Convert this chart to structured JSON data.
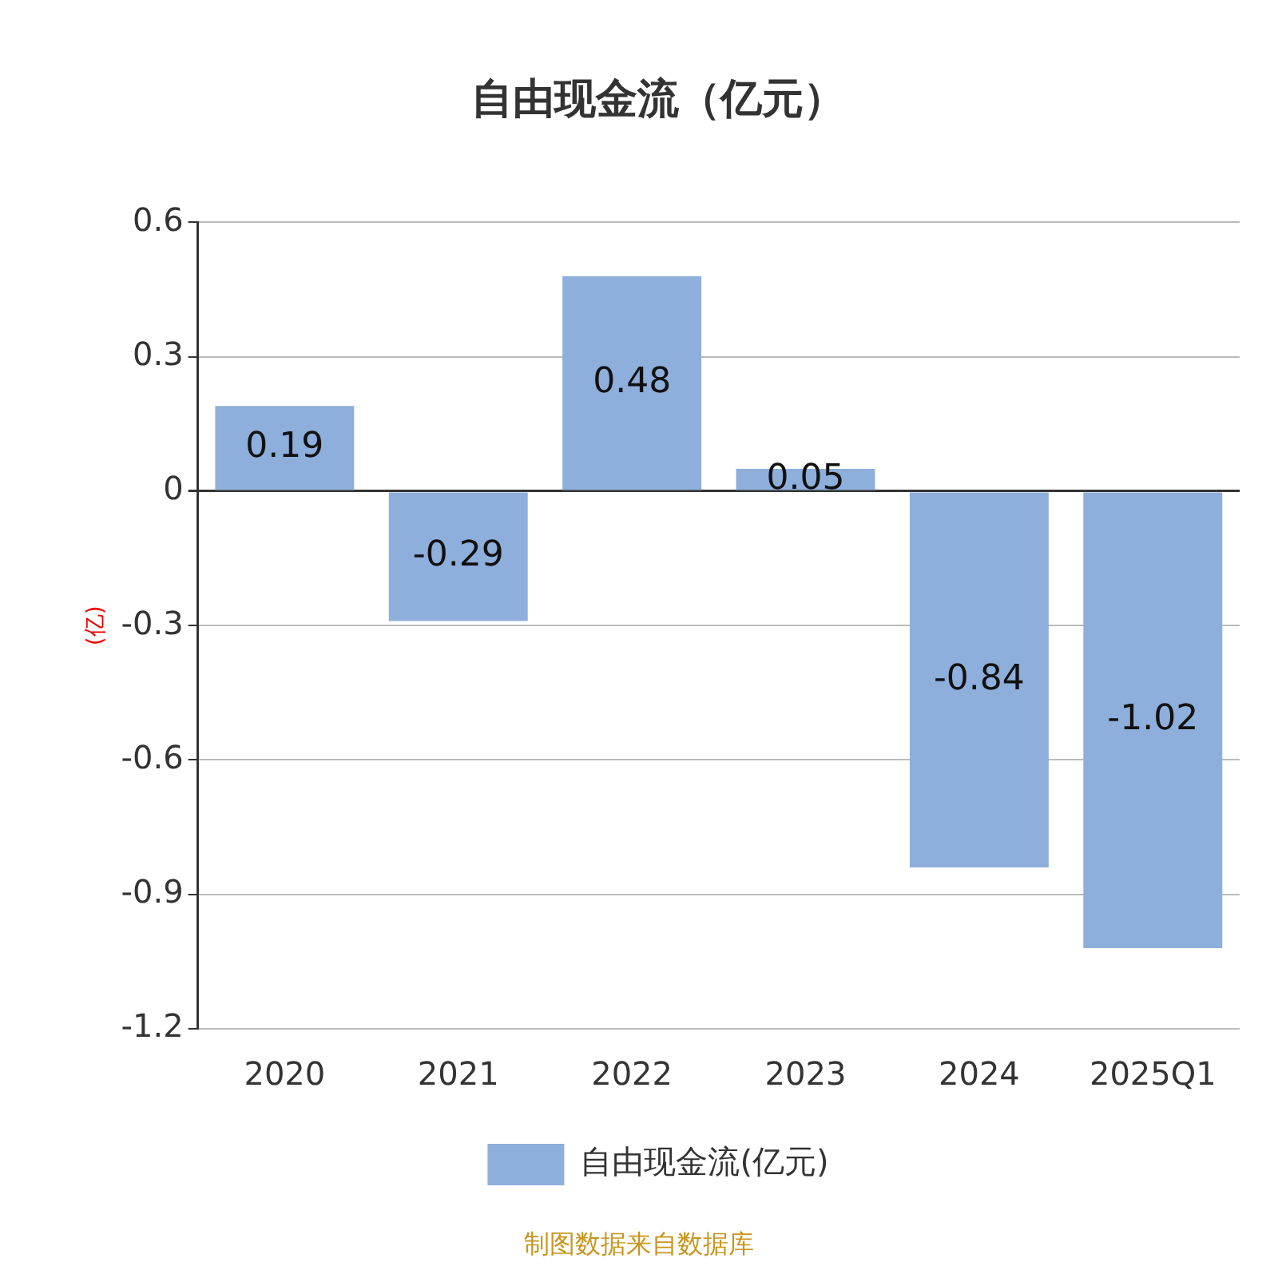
{
  "chart_data": {
    "type": "bar",
    "title": "自由现金流（亿元）",
    "ylabel": "(亿)",
    "categories": [
      "2020",
      "2021",
      "2022",
      "2023",
      "2024",
      "2025Q1"
    ],
    "series": [
      {
        "name": "自由现金流(亿元)",
        "color": "#8eaedb",
        "values": [
          0.19,
          -0.29,
          0.48,
          0.05,
          -0.84,
          -1.02
        ]
      }
    ],
    "ylim": [
      -1.2,
      0.6
    ],
    "yticks": [
      -1.2,
      -0.9,
      -0.6,
      -0.3,
      0,
      0.3,
      0.6
    ],
    "grid": "y",
    "legend": "bottom",
    "data_labels": true,
    "annotations": [
      "制图数据来自数据库"
    ]
  }
}
